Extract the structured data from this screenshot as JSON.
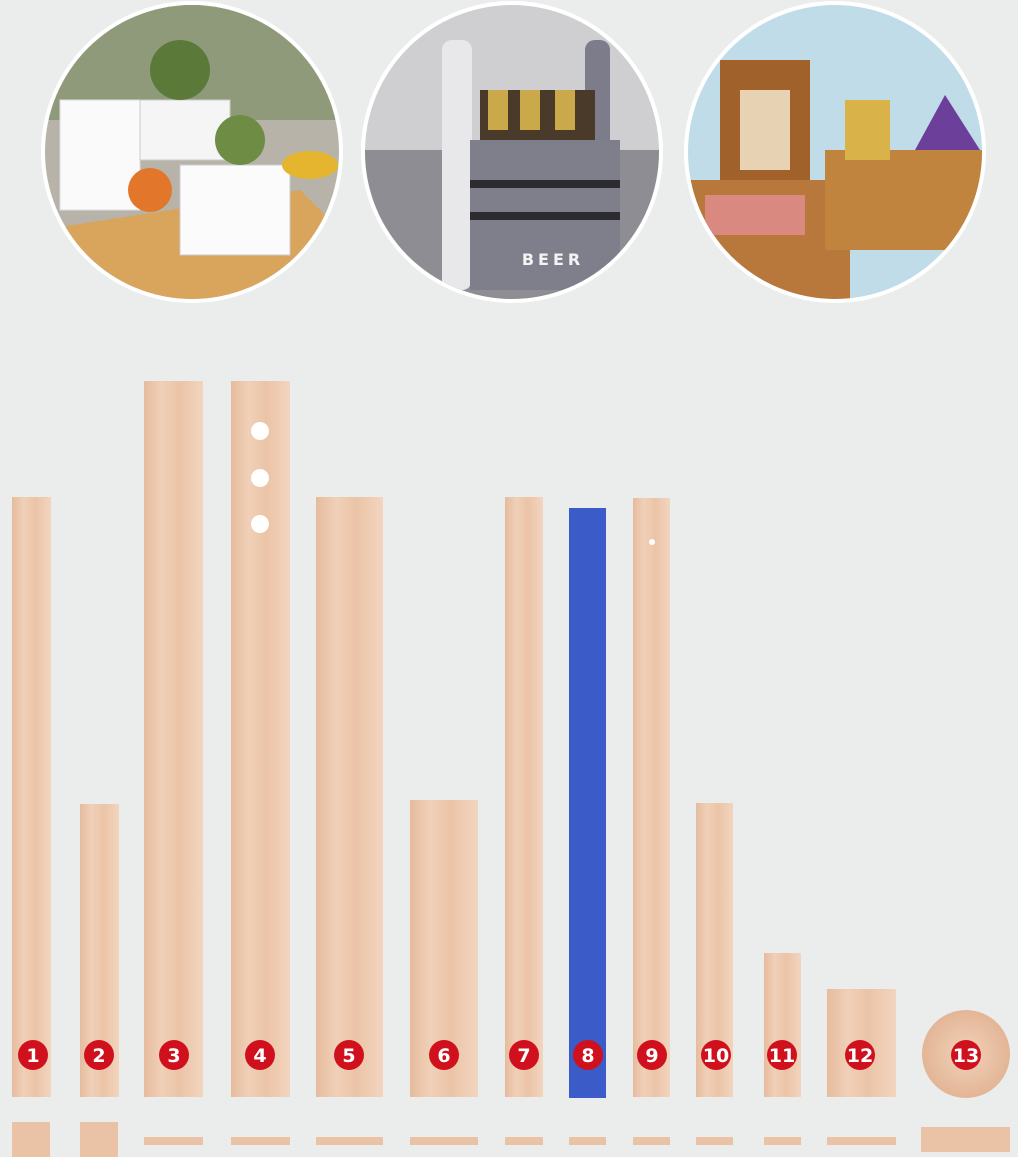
{
  "photos": {
    "beer_box_sign": "BEER"
  },
  "items": [
    {
      "label": "1"
    },
    {
      "label": "2"
    },
    {
      "label": "3"
    },
    {
      "label": "4"
    },
    {
      "label": "5"
    },
    {
      "label": "6"
    },
    {
      "label": "7"
    },
    {
      "label": "8"
    },
    {
      "label": "9"
    },
    {
      "label": "10"
    },
    {
      "label": "11"
    },
    {
      "label": "12"
    },
    {
      "label": "13"
    }
  ]
}
